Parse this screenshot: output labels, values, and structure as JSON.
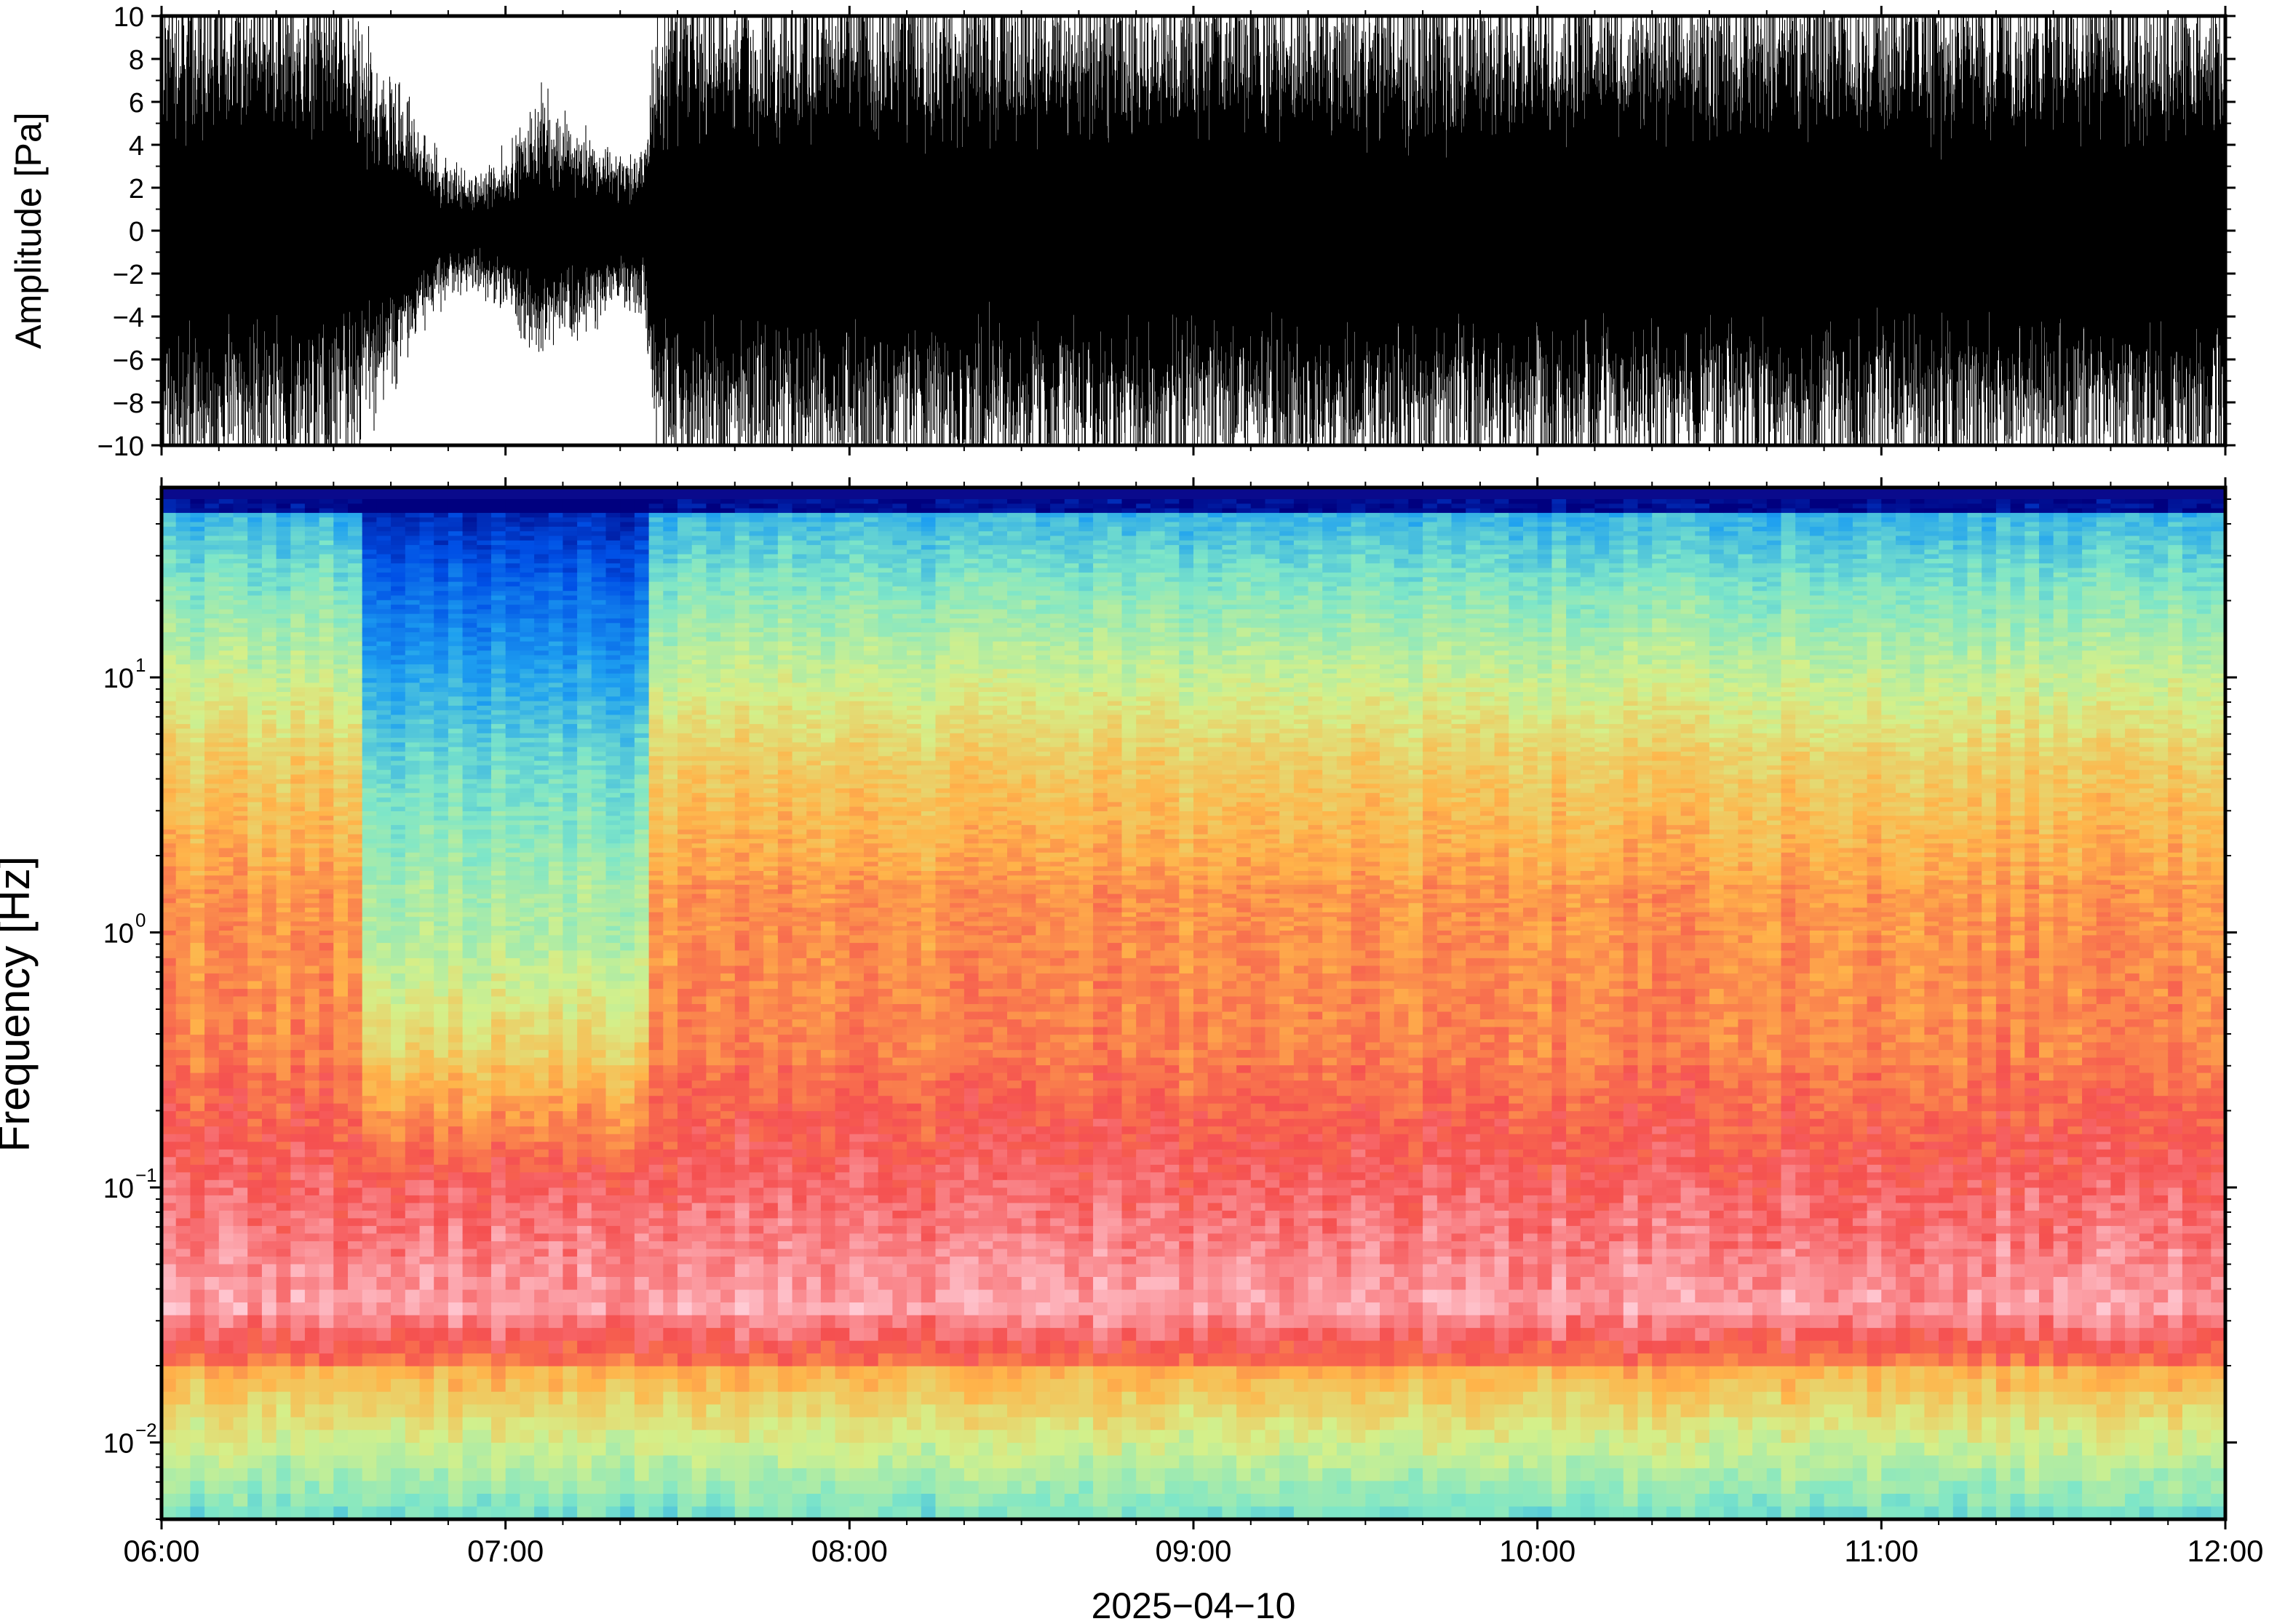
{
  "chart_data": [
    {
      "type": "line",
      "panel": "waveform",
      "ylabel": "Amplitude [Pa]",
      "ylim": [
        -10,
        10
      ],
      "yticks": [
        10,
        8,
        6,
        4,
        2,
        0,
        -2,
        -4,
        -6,
        -8,
        -10
      ],
      "ytick_labels": [
        "10",
        "8",
        "6",
        "4",
        "2",
        "0",
        "−2",
        "−4",
        "−6",
        "−8",
        "−10"
      ],
      "x_range_hours": [
        6,
        12
      ],
      "line_color": "#000000",
      "series": [
        {
          "time_hours": [
            6.0,
            6.25,
            6.5,
            6.6,
            6.7,
            6.8,
            6.9,
            7.0,
            7.1,
            7.2,
            7.3,
            7.4,
            7.45,
            7.6,
            8.0,
            8.5,
            9.0,
            9.5,
            10.0,
            10.5,
            11.0,
            11.5,
            12.0
          ],
          "peak_amplitude_pa": [
            10,
            10,
            10,
            7,
            5,
            3,
            2,
            3,
            5,
            4,
            3,
            3,
            10,
            10,
            10,
            10,
            10,
            10,
            10,
            10,
            10,
            10,
            10
          ]
        }
      ]
    },
    {
      "type": "heatmap",
      "panel": "spectrogram",
      "ylabel": "Frequency [Hz]",
      "yscale": "log",
      "ylim": [
        0.005,
        50
      ],
      "yticks": [
        0.01,
        0.1,
        1,
        10
      ],
      "ytick_labels": [
        {
          "base": "10",
          "exp": "−2"
        },
        {
          "base": "10",
          "exp": "−1"
        },
        {
          "base": "10",
          "exp": "0"
        },
        {
          "base": "10",
          "exp": "1"
        }
      ],
      "x_range_hours": [
        6,
        12
      ],
      "colormap": [
        "#00007f",
        "#0050e6",
        "#1ea0f0",
        "#7ee6c8",
        "#d4f08a",
        "#ffb44a",
        "#f55050",
        "#ffc8d2",
        "#ffe6ea"
      ],
      "quiet_interval_hours": [
        6.6,
        7.4
      ],
      "dominant_band_hz": [
        0.5,
        3
      ]
    }
  ],
  "xaxis": {
    "ticks_hours": [
      6,
      7,
      8,
      9,
      10,
      11,
      12
    ],
    "tick_labels": [
      "06:00",
      "07:00",
      "08:00",
      "09:00",
      "10:00",
      "11:00",
      "12:00"
    ],
    "date_label": "2025−04−10"
  }
}
